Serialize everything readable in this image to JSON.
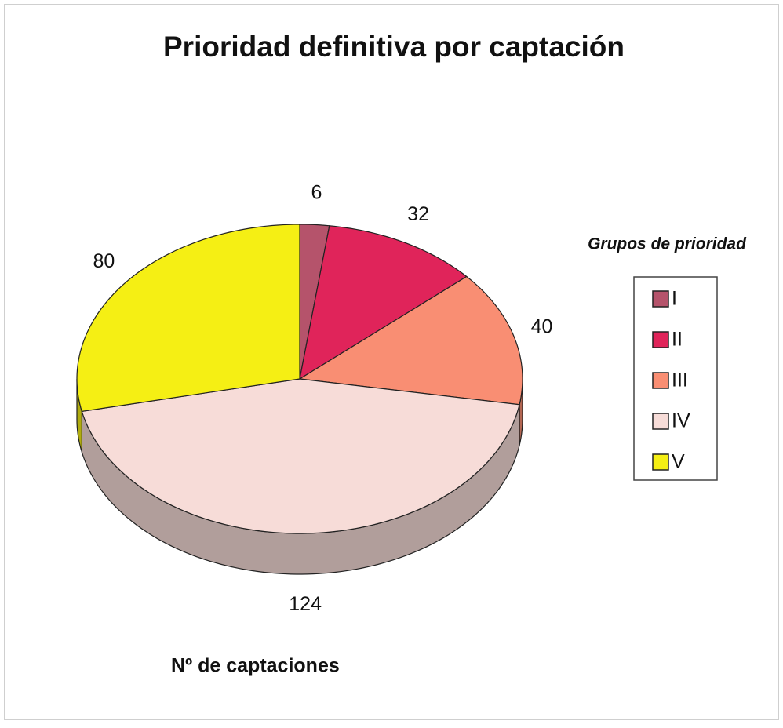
{
  "chart_data": {
    "type": "pie",
    "title": "Prioridad definitiva por captación",
    "legend_title": "Grupos de prioridad",
    "annotation": "Nº de captaciones",
    "categories": [
      "I",
      "II",
      "III",
      "IV",
      "V"
    ],
    "values": [
      6,
      32,
      40,
      124,
      80
    ],
    "colors": [
      "#b5536b",
      "#e0245a",
      "#f98e73",
      "#f7dcd8",
      "#f5ef14"
    ],
    "legend": "right"
  }
}
